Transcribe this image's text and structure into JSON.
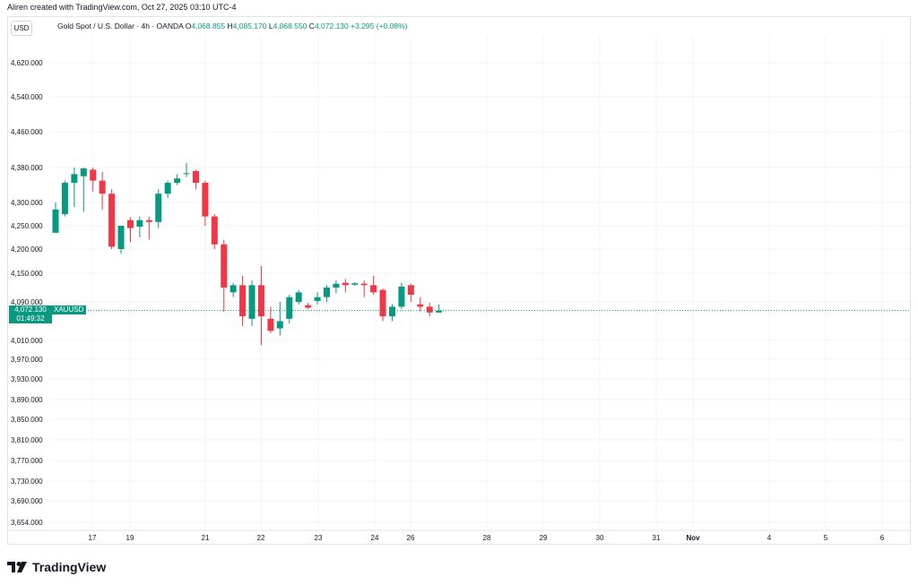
{
  "header": {
    "creator": "Aliren created with TradingView.com, Oct 27, 2025 03:10 UTC-4",
    "currency": "USD",
    "symbol": "Gold Spot / U.S. Dollar · 4h · OANDA",
    "o_label": "O",
    "o": "4,068.855",
    "h_label": "H",
    "h": "4,085.170",
    "l_label": "L",
    "l": "4,068.550",
    "c_label": "C",
    "c": "4,072.130",
    "change": "+3.295 (+0.08%)"
  },
  "price_tag": {
    "price": "4,072.130",
    "countdown": "01:49:32",
    "symbol": "XAUUSD"
  },
  "brand": {
    "name": "TradingView",
    "logo_icon": "tradingview-logo-icon"
  },
  "colors": {
    "up": "#089981",
    "down": "#f23645",
    "grid": "#f0f3fa",
    "axis_text": "#131722",
    "price_line": "#089981"
  },
  "chart_data": {
    "type": "candlestick",
    "title": "",
    "xlabel": "",
    "ylabel": "",
    "grid": true,
    "y_ticks": [
      4620,
      4540,
      4460,
      4380,
      4300,
      4250,
      4200,
      4150,
      4090,
      4010,
      3970,
      3930,
      3890,
      3850,
      3810,
      3770,
      3730,
      3690,
      3654
    ],
    "y_tick_labels": [
      "4,620.000",
      "4,540.000",
      "4,460.000",
      "4,380.000",
      "4,300.000",
      "4,250.000",
      "4,200.000",
      "4,150.000",
      "4,090.000",
      "4,010.000",
      "3,970.000",
      "3,930.000",
      "3,890.000",
      "3,850.000",
      "3,810.000",
      "3,770.000",
      "3,730.000",
      "3,690.000",
      "3,654.000"
    ],
    "x_labels": [
      "17",
      "19",
      "21",
      "22",
      "23",
      "24",
      "26",
      "28",
      "29",
      "30",
      "31",
      "Nov",
      "4",
      "5",
      "6"
    ],
    "last_price": 4072.13,
    "candles": [
      {
        "o": 4235,
        "h": 4300,
        "l": 4235,
        "c": 4285
      },
      {
        "o": 4275,
        "h": 4350,
        "l": 4270,
        "c": 4345
      },
      {
        "o": 4345,
        "h": 4380,
        "l": 4290,
        "c": 4365
      },
      {
        "o": 4360,
        "h": 4380,
        "l": 4280,
        "c": 4378
      },
      {
        "o": 4375,
        "h": 4380,
        "l": 4325,
        "c": 4350
      },
      {
        "o": 4350,
        "h": 4370,
        "l": 4285,
        "c": 4320
      },
      {
        "o": 4320,
        "h": 4330,
        "l": 4200,
        "c": 4205
      },
      {
        "o": 4200,
        "h": 4250,
        "l": 4190,
        "c": 4250
      },
      {
        "o": 4262,
        "h": 4268,
        "l": 4215,
        "c": 4245
      },
      {
        "o": 4248,
        "h": 4270,
        "l": 4225,
        "c": 4262
      },
      {
        "o": 4262,
        "h": 4270,
        "l": 4220,
        "c": 4258
      },
      {
        "o": 4258,
        "h": 4330,
        "l": 4245,
        "c": 4320
      },
      {
        "o": 4320,
        "h": 4350,
        "l": 4310,
        "c": 4345
      },
      {
        "o": 4345,
        "h": 4365,
        "l": 4340,
        "c": 4355
      },
      {
        "o": 4365,
        "h": 4390,
        "l": 4358,
        "c": 4367
      },
      {
        "o": 4372,
        "h": 4375,
        "l": 4330,
        "c": 4345
      },
      {
        "o": 4345,
        "h": 4350,
        "l": 4250,
        "c": 4270
      },
      {
        "o": 4270,
        "h": 4275,
        "l": 4200,
        "c": 4210
      },
      {
        "o": 4210,
        "h": 4220,
        "l": 4070,
        "c": 4120
      },
      {
        "o": 4110,
        "h": 4130,
        "l": 4100,
        "c": 4125
      },
      {
        "o": 4125,
        "h": 4145,
        "l": 4040,
        "c": 4060
      },
      {
        "o": 4055,
        "h": 4135,
        "l": 4040,
        "c": 4125
      },
      {
        "o": 4125,
        "h": 4165,
        "l": 4000,
        "c": 4060
      },
      {
        "o": 4055,
        "h": 4080,
        "l": 4025,
        "c": 4030
      },
      {
        "o": 4035,
        "h": 4090,
        "l": 4020,
        "c": 4050
      },
      {
        "o": 4055,
        "h": 4105,
        "l": 4045,
        "c": 4100
      },
      {
        "o": 4090,
        "h": 4115,
        "l": 4085,
        "c": 4110
      },
      {
        "o": 4083,
        "h": 4088,
        "l": 4075,
        "c": 4078
      },
      {
        "o": 4092,
        "h": 4110,
        "l": 4085,
        "c": 4100
      },
      {
        "o": 4100,
        "h": 4125,
        "l": 4090,
        "c": 4120
      },
      {
        "o": 4120,
        "h": 4135,
        "l": 4108,
        "c": 4128
      },
      {
        "o": 4130,
        "h": 4138,
        "l": 4110,
        "c": 4125
      },
      {
        "o": 4126,
        "h": 4131,
        "l": 4124,
        "c": 4129
      },
      {
        "o": 4128,
        "h": 4135,
        "l": 4100,
        "c": 4125
      },
      {
        "o": 4125,
        "h": 4145,
        "l": 4105,
        "c": 4110
      },
      {
        "o": 4115,
        "h": 4118,
        "l": 4050,
        "c": 4060
      },
      {
        "o": 4060,
        "h": 4085,
        "l": 4050,
        "c": 4080
      },
      {
        "o": 4080,
        "h": 4130,
        "l": 4075,
        "c": 4122
      },
      {
        "o": 4125,
        "h": 4128,
        "l": 4090,
        "c": 4105
      },
      {
        "o": 4085,
        "h": 4100,
        "l": 4070,
        "c": 4080
      },
      {
        "o": 4080,
        "h": 4088,
        "l": 4060,
        "c": 4068
      },
      {
        "o": 4068,
        "h": 4085,
        "l": 4068,
        "c": 4072
      }
    ]
  }
}
